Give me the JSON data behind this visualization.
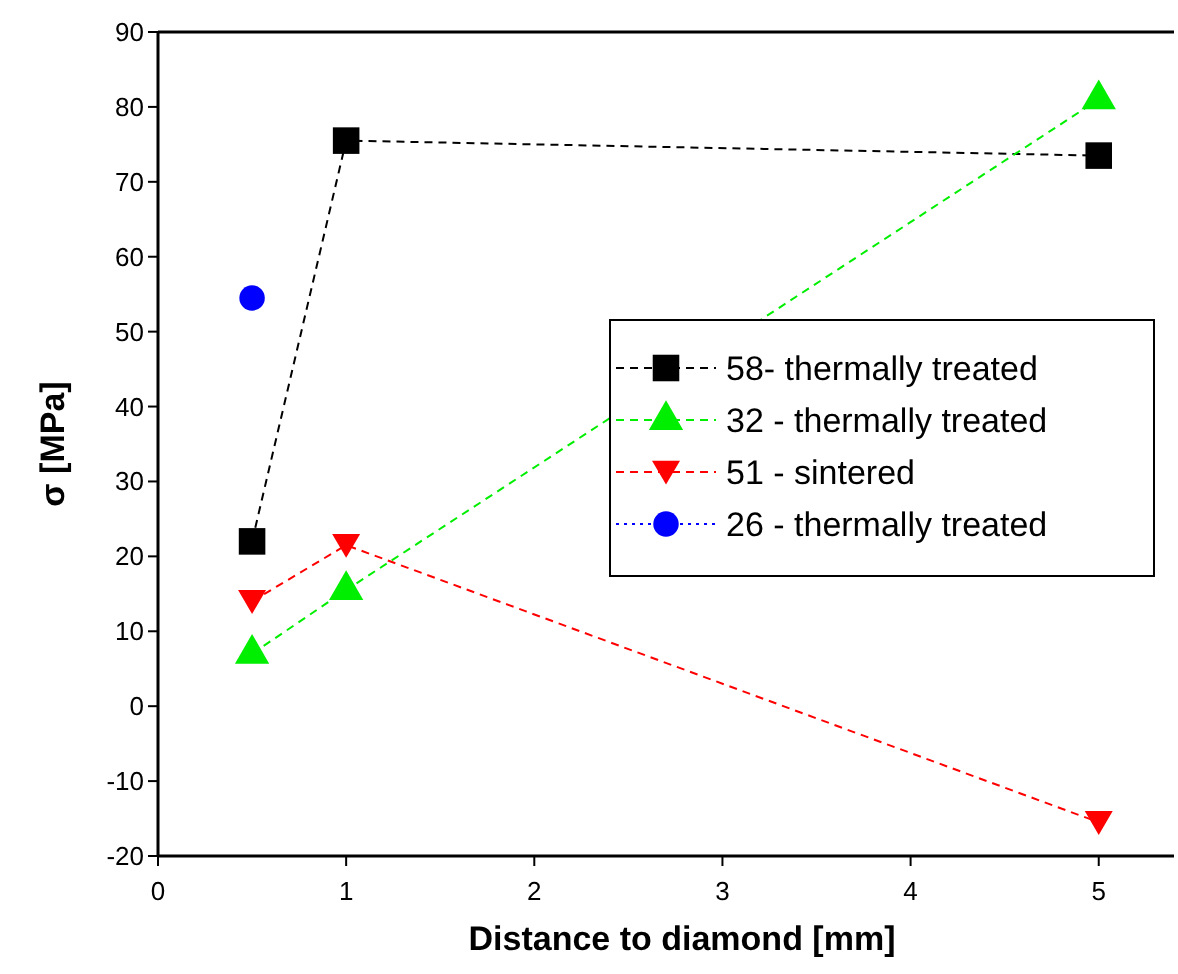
{
  "chart_data": {
    "type": "line",
    "xlabel": "Distance to diamond [mm]",
    "ylabel": "σ [MPa]",
    "xlim": [
      0,
      5.4
    ],
    "xticks": [
      0,
      1,
      2,
      3,
      4,
      5
    ],
    "ylim": [
      -20,
      90
    ],
    "yticks": [
      -20,
      -10,
      0,
      10,
      20,
      30,
      40,
      50,
      60,
      70,
      80,
      90
    ],
    "grid": false,
    "legend": "right",
    "series": [
      {
        "name": "58- thermally treated",
        "color": "#000000",
        "marker": "square",
        "line_style": "dashed",
        "x": [
          0.5,
          1,
          5
        ],
        "values": [
          22,
          75.5,
          73.5
        ]
      },
      {
        "name": "32 - thermally treated",
        "color": "#00ee00",
        "marker": "triangle",
        "line_style": "dashed",
        "x": [
          0.5,
          1,
          5
        ],
        "values": [
          7,
          15.5,
          81
        ]
      },
      {
        "name": "51 - sintered",
        "color": "#ff0000",
        "marker": "triangle-down",
        "line_style": "dashed",
        "x": [
          0.5,
          1,
          5
        ],
        "values": [
          14,
          21.5,
          -15.5
        ]
      },
      {
        "name": "26 - thermally treated",
        "color": "#0000ff",
        "marker": "circle",
        "line_style": "dotted",
        "x": [
          0.5
        ],
        "values": [
          54.5
        ]
      }
    ]
  }
}
